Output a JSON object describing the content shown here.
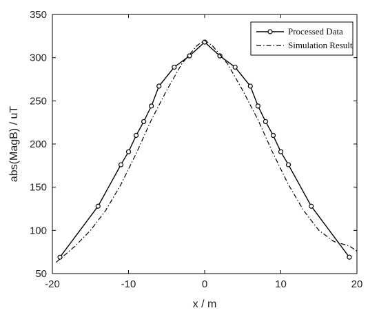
{
  "chart_data": {
    "type": "line",
    "xlabel": "x / m",
    "ylabel": "abs(MagB) / uT",
    "xlim": [
      -20,
      20
    ],
    "ylim": [
      50,
      350
    ],
    "xticks": [
      -20,
      -10,
      0,
      10,
      20
    ],
    "yticks": [
      50,
      100,
      150,
      200,
      250,
      300,
      350
    ],
    "grid": false,
    "legend_position": "top-right",
    "series": [
      {
        "name": "Processed Data",
        "style": "solid-circle-markers",
        "color": "#000000",
        "x": [
          -19,
          -14,
          -11,
          -10,
          -9,
          -8,
          -7,
          -6,
          -4,
          -2,
          0,
          2,
          4,
          6,
          7,
          8,
          9,
          10,
          11,
          14,
          19
        ],
        "y": [
          69,
          128,
          176,
          191,
          210,
          226,
          244,
          267,
          289,
          302,
          318,
          302,
          289,
          267,
          244,
          226,
          210,
          191,
          176,
          128,
          69
        ]
      },
      {
        "name": "Simulation Result",
        "style": "dash-dot",
        "color": "#000000",
        "x": [
          -19.5,
          -17,
          -15,
          -13,
          -11,
          -9,
          -7,
          -5,
          -3,
          -1,
          0,
          1,
          3,
          5,
          7,
          9,
          11,
          13,
          15,
          17,
          19,
          20
        ],
        "y": [
          63,
          82,
          100,
          123,
          153,
          189,
          228,
          262,
          293,
          314,
          320,
          314,
          293,
          262,
          228,
          189,
          153,
          123,
          100,
          87,
          82,
          76
        ]
      }
    ]
  }
}
